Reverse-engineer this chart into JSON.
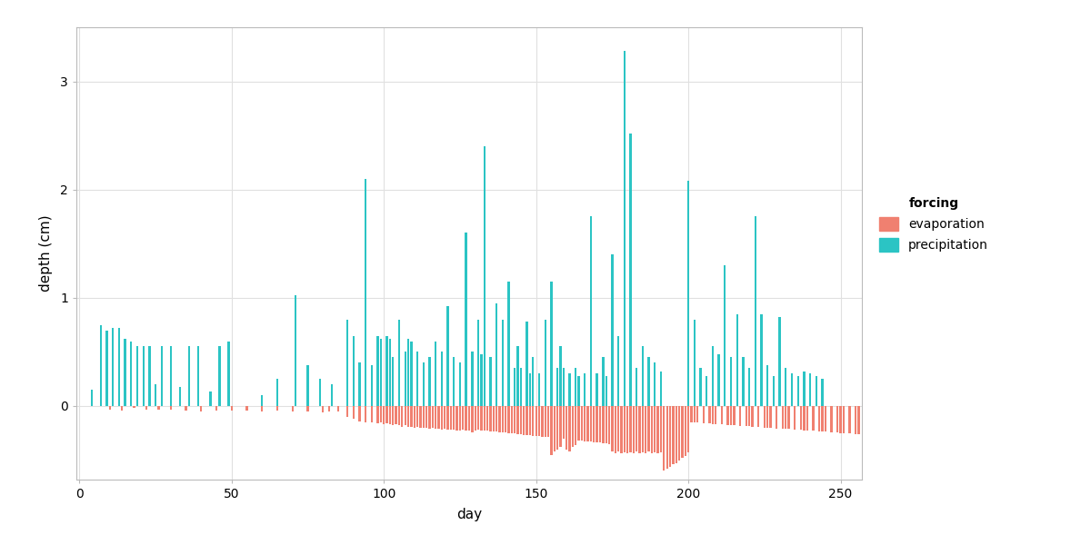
{
  "title": "",
  "xlabel": "day",
  "ylabel": "depth (cm)",
  "legend_title": "forcing",
  "legend_labels": [
    "evaporation",
    "precipitation"
  ],
  "evaporation_color": "#F08070",
  "precipitation_color": "#2BC4C4",
  "background_color": "#FFFFFF",
  "grid_color": "#E0E0E0",
  "xlim": [
    -1,
    257
  ],
  "ylim": [
    -0.68,
    3.5
  ],
  "xticks": [
    0,
    50,
    100,
    150,
    200,
    250
  ],
  "yticks": [
    0,
    1,
    2,
    3
  ],
  "figsize": [
    12,
    6
  ],
  "dpi": 100,
  "bar_width": 0.7
}
